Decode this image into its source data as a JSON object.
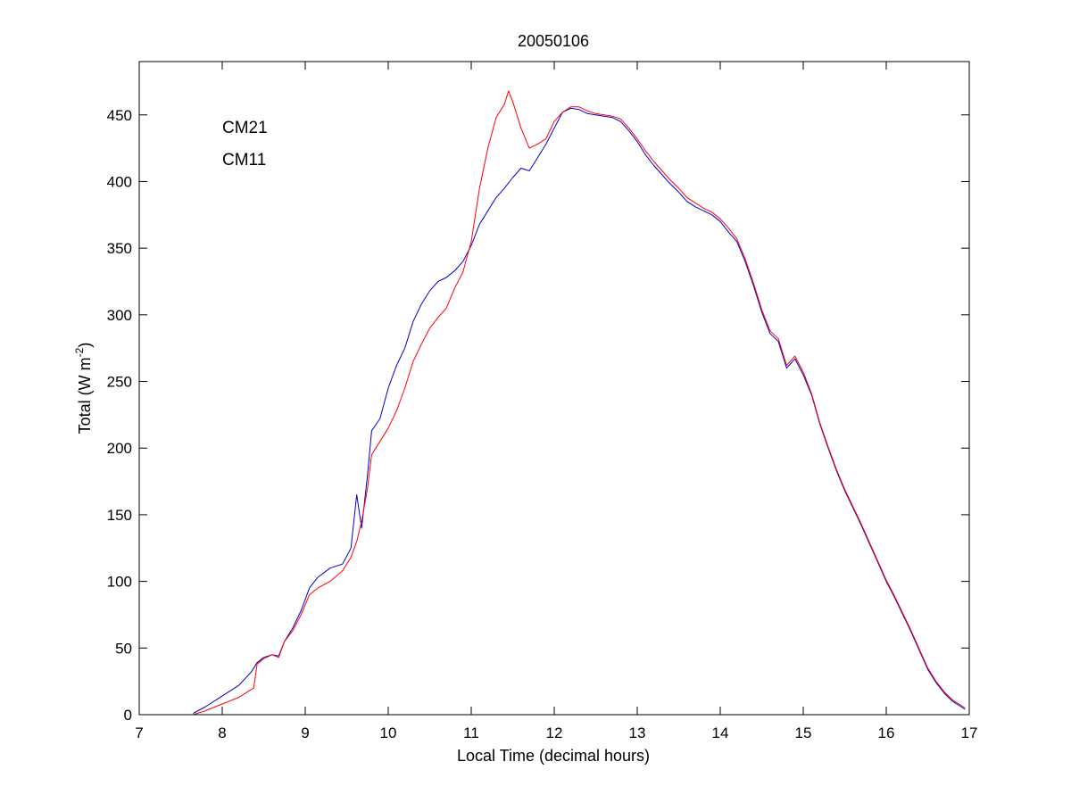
{
  "chart_data": {
    "type": "line",
    "title": "20050106",
    "xlabel": "Local Time (decimal hours)",
    "ylabel": {
      "prefix": "Total (W m",
      "superscript": "-2",
      "suffix": ")"
    },
    "xlim": [
      7,
      17
    ],
    "ylim": [
      0,
      490
    ],
    "xticks": [
      7,
      8,
      9,
      10,
      11,
      12,
      13,
      14,
      15,
      16,
      17
    ],
    "yticks": [
      0,
      50,
      100,
      150,
      200,
      250,
      300,
      350,
      400,
      450
    ],
    "grid": false,
    "legend": {
      "position": "top-left",
      "style": "colored-text"
    },
    "series": [
      {
        "name": "CM21",
        "color": "#0000cc",
        "points": [
          [
            7.65,
            1
          ],
          [
            7.8,
            6
          ],
          [
            8.0,
            14
          ],
          [
            8.2,
            22
          ],
          [
            8.35,
            32
          ],
          [
            8.42,
            39
          ],
          [
            8.5,
            43
          ],
          [
            8.6,
            45
          ],
          [
            8.68,
            44
          ],
          [
            8.75,
            55
          ],
          [
            8.85,
            65
          ],
          [
            8.95,
            78
          ],
          [
            9.05,
            95
          ],
          [
            9.15,
            103
          ],
          [
            9.3,
            110
          ],
          [
            9.45,
            113
          ],
          [
            9.55,
            125
          ],
          [
            9.62,
            165
          ],
          [
            9.68,
            140
          ],
          [
            9.75,
            180
          ],
          [
            9.8,
            213
          ],
          [
            9.9,
            222
          ],
          [
            10.0,
            245
          ],
          [
            10.1,
            262
          ],
          [
            10.2,
            275
          ],
          [
            10.3,
            295
          ],
          [
            10.4,
            308
          ],
          [
            10.5,
            318
          ],
          [
            10.6,
            325
          ],
          [
            10.7,
            328
          ],
          [
            10.8,
            333
          ],
          [
            10.9,
            340
          ],
          [
            11.0,
            352
          ],
          [
            11.1,
            368
          ],
          [
            11.2,
            378
          ],
          [
            11.3,
            388
          ],
          [
            11.4,
            395
          ],
          [
            11.5,
            403
          ],
          [
            11.6,
            410
          ],
          [
            11.7,
            408
          ],
          [
            11.8,
            418
          ],
          [
            11.9,
            428
          ],
          [
            12.0,
            440
          ],
          [
            12.1,
            452
          ],
          [
            12.2,
            455
          ],
          [
            12.3,
            454
          ],
          [
            12.4,
            451
          ],
          [
            12.5,
            450
          ],
          [
            12.6,
            449
          ],
          [
            12.7,
            448
          ],
          [
            12.8,
            445
          ],
          [
            12.9,
            438
          ],
          [
            13.0,
            430
          ],
          [
            13.1,
            420
          ],
          [
            13.2,
            412
          ],
          [
            13.3,
            405
          ],
          [
            13.4,
            398
          ],
          [
            13.5,
            392
          ],
          [
            13.6,
            385
          ],
          [
            13.7,
            381
          ],
          [
            13.8,
            378
          ],
          [
            13.9,
            375
          ],
          [
            14.0,
            370
          ],
          [
            14.1,
            362
          ],
          [
            14.2,
            355
          ],
          [
            14.3,
            340
          ],
          [
            14.4,
            322
          ],
          [
            14.5,
            302
          ],
          [
            14.6,
            286
          ],
          [
            14.7,
            280
          ],
          [
            14.8,
            260
          ],
          [
            14.9,
            267
          ],
          [
            15.0,
            255
          ],
          [
            15.1,
            240
          ],
          [
            15.2,
            218
          ],
          [
            15.3,
            200
          ],
          [
            15.4,
            183
          ],
          [
            15.5,
            168
          ],
          [
            15.6,
            155
          ],
          [
            15.7,
            142
          ],
          [
            15.8,
            128
          ],
          [
            15.9,
            114
          ],
          [
            16.0,
            100
          ],
          [
            16.1,
            88
          ],
          [
            16.2,
            75
          ],
          [
            16.3,
            62
          ],
          [
            16.4,
            48
          ],
          [
            16.5,
            34
          ],
          [
            16.6,
            24
          ],
          [
            16.7,
            16
          ],
          [
            16.8,
            10
          ],
          [
            16.9,
            6
          ],
          [
            16.95,
            4
          ]
        ]
      },
      {
        "name": "CM11",
        "color": "#ff0000",
        "points": [
          [
            7.65,
            0
          ],
          [
            7.8,
            3
          ],
          [
            8.0,
            8
          ],
          [
            8.2,
            13
          ],
          [
            8.38,
            20
          ],
          [
            8.42,
            38
          ],
          [
            8.5,
            42
          ],
          [
            8.6,
            45
          ],
          [
            8.68,
            43
          ],
          [
            8.75,
            55
          ],
          [
            8.85,
            63
          ],
          [
            8.95,
            75
          ],
          [
            9.05,
            90
          ],
          [
            9.15,
            95
          ],
          [
            9.3,
            100
          ],
          [
            9.45,
            108
          ],
          [
            9.55,
            118
          ],
          [
            9.62,
            130
          ],
          [
            9.68,
            145
          ],
          [
            9.75,
            170
          ],
          [
            9.8,
            195
          ],
          [
            9.9,
            205
          ],
          [
            10.0,
            215
          ],
          [
            10.1,
            228
          ],
          [
            10.2,
            245
          ],
          [
            10.3,
            265
          ],
          [
            10.4,
            278
          ],
          [
            10.5,
            290
          ],
          [
            10.6,
            298
          ],
          [
            10.7,
            305
          ],
          [
            10.8,
            320
          ],
          [
            10.9,
            332
          ],
          [
            11.0,
            355
          ],
          [
            11.1,
            395
          ],
          [
            11.2,
            425
          ],
          [
            11.3,
            448
          ],
          [
            11.4,
            458
          ],
          [
            11.45,
            468
          ],
          [
            11.5,
            460
          ],
          [
            11.6,
            440
          ],
          [
            11.7,
            425
          ],
          [
            11.8,
            428
          ],
          [
            11.9,
            432
          ],
          [
            12.0,
            445
          ],
          [
            12.1,
            452
          ],
          [
            12.2,
            456
          ],
          [
            12.3,
            456
          ],
          [
            12.4,
            453
          ],
          [
            12.5,
            451
          ],
          [
            12.6,
            450
          ],
          [
            12.7,
            449
          ],
          [
            12.8,
            447
          ],
          [
            12.9,
            440
          ],
          [
            13.0,
            432
          ],
          [
            13.1,
            423
          ],
          [
            13.2,
            415
          ],
          [
            13.3,
            408
          ],
          [
            13.4,
            401
          ],
          [
            13.5,
            395
          ],
          [
            13.6,
            388
          ],
          [
            13.7,
            384
          ],
          [
            13.8,
            380
          ],
          [
            13.9,
            377
          ],
          [
            14.0,
            372
          ],
          [
            14.1,
            365
          ],
          [
            14.2,
            357
          ],
          [
            14.3,
            342
          ],
          [
            14.4,
            324
          ],
          [
            14.5,
            304
          ],
          [
            14.6,
            288
          ],
          [
            14.7,
            282
          ],
          [
            14.8,
            262
          ],
          [
            14.9,
            269
          ],
          [
            15.0,
            257
          ],
          [
            15.1,
            241
          ],
          [
            15.2,
            219
          ],
          [
            15.3,
            201
          ],
          [
            15.4,
            184
          ],
          [
            15.5,
            169
          ],
          [
            15.6,
            156
          ],
          [
            15.7,
            143
          ],
          [
            15.8,
            129
          ],
          [
            15.9,
            115
          ],
          [
            16.0,
            101
          ],
          [
            16.1,
            89
          ],
          [
            16.2,
            76
          ],
          [
            16.3,
            63
          ],
          [
            16.4,
            49
          ],
          [
            16.5,
            35
          ],
          [
            16.6,
            25
          ],
          [
            16.7,
            17
          ],
          [
            16.8,
            11
          ],
          [
            16.9,
            7
          ],
          [
            16.95,
            5
          ]
        ]
      }
    ]
  }
}
